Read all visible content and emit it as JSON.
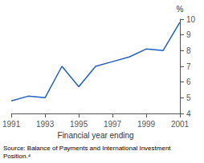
{
  "chart_data": {
    "type": "line",
    "x": [
      1991,
      1992,
      1993,
      1994,
      1995,
      1996,
      1997,
      1998,
      1999,
      2000,
      2001
    ],
    "values": [
      4.8,
      5.1,
      5.0,
      7.0,
      5.7,
      7.0,
      7.3,
      7.6,
      8.1,
      8.0,
      9.8
    ],
    "color": "#2060c0",
    "xlabel": "Financial year ending",
    "ylabel": "%",
    "xlim": [
      1991,
      2001
    ],
    "xticks": [
      1991,
      1993,
      1995,
      1997,
      1999,
      2001
    ],
    "ylim": [
      4,
      10
    ],
    "yticks": [
      4,
      5,
      6,
      7,
      8,
      9,
      10
    ],
    "grid": false,
    "source": "Source: Balance of Payments and International Investment\nPosition.⁴"
  }
}
